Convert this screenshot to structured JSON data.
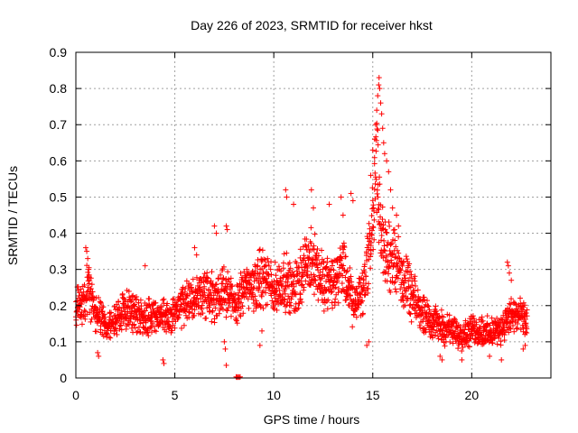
{
  "chart_data": {
    "type": "scatter",
    "title": "Day 226 of 2023, SRMTID for receiver hkst",
    "xlabel": "GPS time / hours",
    "ylabel": "SRMTID / TECUs",
    "xlim": [
      0,
      24
    ],
    "ylim": [
      0,
      0.9
    ],
    "x_ticks": [
      0,
      5,
      10,
      15,
      20
    ],
    "x_tick_labels": [
      "0",
      "5",
      "10",
      "15",
      "20"
    ],
    "y_ticks": [
      0,
      0.1,
      0.2,
      0.3,
      0.4,
      0.5,
      0.6,
      0.7,
      0.8,
      0.9
    ],
    "y_tick_labels": [
      "0",
      "0.1",
      "0.2",
      "0.3",
      "0.4",
      "0.5",
      "0.6",
      "0.7",
      "0.8",
      "0.9"
    ],
    "grid": true,
    "marker": "+",
    "color": "#ff0000",
    "trend": {
      "x": [
        0,
        0.3,
        0.6,
        1.0,
        1.5,
        2.0,
        2.5,
        3.0,
        3.5,
        4.0,
        4.5,
        5.0,
        5.5,
        6.0,
        6.5,
        7.0,
        7.5,
        8.0,
        8.5,
        9.0,
        9.5,
        10.0,
        10.5,
        11.0,
        11.5,
        12.0,
        12.5,
        13.0,
        13.5,
        14.0,
        14.5,
        14.9,
        15.2,
        15.4,
        15.7,
        16.0,
        16.5,
        17.0,
        17.5,
        18.0,
        18.5,
        19.0,
        19.5,
        20.0,
        20.5,
        21.0,
        21.5,
        22.0,
        22.5,
        22.8
      ],
      "y": [
        0.21,
        0.2,
        0.25,
        0.18,
        0.15,
        0.16,
        0.19,
        0.18,
        0.17,
        0.18,
        0.16,
        0.18,
        0.2,
        0.22,
        0.24,
        0.22,
        0.26,
        0.2,
        0.24,
        0.26,
        0.28,
        0.24,
        0.27,
        0.24,
        0.3,
        0.33,
        0.26,
        0.27,
        0.3,
        0.2,
        0.24,
        0.38,
        0.58,
        0.42,
        0.32,
        0.34,
        0.28,
        0.22,
        0.18,
        0.16,
        0.14,
        0.13,
        0.12,
        0.13,
        0.13,
        0.12,
        0.14,
        0.17,
        0.17,
        0.15
      ]
    },
    "points": [
      {
        "x": 0.5,
        "y": 0.36
      },
      {
        "x": 0.55,
        "y": 0.35
      },
      {
        "x": 0.6,
        "y": 0.33
      },
      {
        "x": 0.65,
        "y": 0.3
      },
      {
        "x": 1.1,
        "y": 0.07
      },
      {
        "x": 1.15,
        "y": 0.06
      },
      {
        "x": 3.5,
        "y": 0.31
      },
      {
        "x": 4.4,
        "y": 0.05
      },
      {
        "x": 4.45,
        "y": 0.04
      },
      {
        "x": 6.0,
        "y": 0.36
      },
      {
        "x": 6.1,
        "y": 0.34
      },
      {
        "x": 7.0,
        "y": 0.42
      },
      {
        "x": 7.1,
        "y": 0.4
      },
      {
        "x": 7.6,
        "y": 0.42
      },
      {
        "x": 7.65,
        "y": 0.41
      },
      {
        "x": 7.5,
        "y": 0.1
      },
      {
        "x": 7.55,
        "y": 0.08
      },
      {
        "x": 7.6,
        "y": 0.035
      },
      {
        "x": 8.1,
        "y": 0.003
      },
      {
        "x": 8.15,
        "y": 0.002
      },
      {
        "x": 8.2,
        "y": 0.003
      },
      {
        "x": 8.25,
        "y": 0.002
      },
      {
        "x": 8.3,
        "y": 0.003
      },
      {
        "x": 9.3,
        "y": 0.09
      },
      {
        "x": 9.4,
        "y": 0.13
      },
      {
        "x": 10.6,
        "y": 0.52
      },
      {
        "x": 10.65,
        "y": 0.5
      },
      {
        "x": 11.0,
        "y": 0.48
      },
      {
        "x": 11.9,
        "y": 0.52
      },
      {
        "x": 12.0,
        "y": 0.47
      },
      {
        "x": 12.8,
        "y": 0.48
      },
      {
        "x": 13.4,
        "y": 0.5
      },
      {
        "x": 13.5,
        "y": 0.45
      },
      {
        "x": 13.9,
        "y": 0.51
      },
      {
        "x": 14.0,
        "y": 0.49
      },
      {
        "x": 14.7,
        "y": 0.09
      },
      {
        "x": 14.8,
        "y": 0.1
      },
      {
        "x": 14.9,
        "y": 0.56
      },
      {
        "x": 15.0,
        "y": 0.63
      },
      {
        "x": 15.1,
        "y": 0.66
      },
      {
        "x": 15.15,
        "y": 0.7
      },
      {
        "x": 15.2,
        "y": 0.74
      },
      {
        "x": 15.25,
        "y": 0.78
      },
      {
        "x": 15.3,
        "y": 0.81
      },
      {
        "x": 15.32,
        "y": 0.83
      },
      {
        "x": 15.35,
        "y": 0.8
      },
      {
        "x": 15.4,
        "y": 0.76
      },
      {
        "x": 15.45,
        "y": 0.73
      },
      {
        "x": 15.5,
        "y": 0.69
      },
      {
        "x": 15.55,
        "y": 0.65
      },
      {
        "x": 15.6,
        "y": 0.62
      },
      {
        "x": 15.7,
        "y": 0.6
      },
      {
        "x": 15.8,
        "y": 0.57
      },
      {
        "x": 15.9,
        "y": 0.52
      },
      {
        "x": 16.0,
        "y": 0.47
      },
      {
        "x": 16.1,
        "y": 0.4
      },
      {
        "x": 16.2,
        "y": 0.45
      },
      {
        "x": 16.3,
        "y": 0.42
      },
      {
        "x": 18.4,
        "y": 0.06
      },
      {
        "x": 18.5,
        "y": 0.05
      },
      {
        "x": 19.5,
        "y": 0.05
      },
      {
        "x": 20.9,
        "y": 0.06
      },
      {
        "x": 21.5,
        "y": 0.05
      },
      {
        "x": 21.8,
        "y": 0.32
      },
      {
        "x": 21.85,
        "y": 0.31
      },
      {
        "x": 21.9,
        "y": 0.29
      },
      {
        "x": 22.0,
        "y": 0.27
      },
      {
        "x": 22.6,
        "y": 0.08
      },
      {
        "x": 22.7,
        "y": 0.09
      }
    ]
  }
}
